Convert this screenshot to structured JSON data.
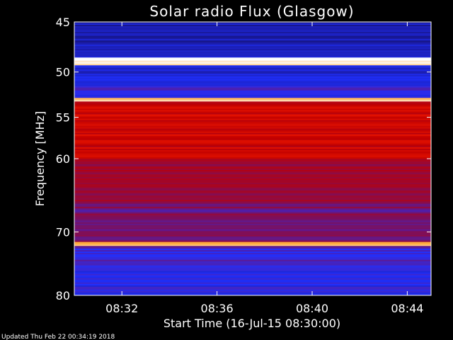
{
  "chart_data": {
    "type": "heatmap",
    "title": "Solar radio Flux (Glasgow)",
    "xlabel": "Start Time (16-Jul-15 08:30:00)",
    "ylabel": "Frequency [MHz]",
    "ylim": [
      45,
      80
    ],
    "xlim_minutes": [
      0,
      15
    ],
    "y_ticks": [
      "45",
      "50",
      "55",
      "60",
      "70",
      "80"
    ],
    "y_tick_values": [
      45,
      50,
      55,
      60,
      70,
      80
    ],
    "x_ticks": [
      "08:32",
      "08:36",
      "08:40",
      "08:44"
    ],
    "x_tick_values": [
      2,
      6,
      10,
      14
    ],
    "colormap": [
      "#000000",
      "#1a1aa0",
      "#2030ff",
      "#7a1060",
      "#c00000",
      "#ff2000",
      "#ff9000",
      "#ffffff"
    ],
    "bands": [
      {
        "from_mhz": 45,
        "to_mhz": 48.5,
        "level": 0.18
      },
      {
        "from_mhz": 48.5,
        "to_mhz": 49.3,
        "level": 1.0
      },
      {
        "from_mhz": 49.3,
        "to_mhz": 51.5,
        "level": 0.22
      },
      {
        "from_mhz": 51.5,
        "to_mhz": 52.8,
        "level": 0.3
      },
      {
        "from_mhz": 52.8,
        "to_mhz": 53.2,
        "level": 0.92
      },
      {
        "from_mhz": 53.2,
        "to_mhz": 60,
        "level": 0.6
      },
      {
        "from_mhz": 60,
        "to_mhz": 66,
        "level": 0.5
      },
      {
        "from_mhz": 66,
        "to_mhz": 71.5,
        "level": 0.42
      },
      {
        "from_mhz": 71.5,
        "to_mhz": 72.1,
        "level": 0.95
      },
      {
        "from_mhz": 72.1,
        "to_mhz": 76,
        "level": 0.34
      },
      {
        "from_mhz": 76,
        "to_mhz": 80,
        "level": 0.28
      }
    ]
  },
  "footer": {
    "updated": "Updated Thu Feb 22 00:34:19 2018"
  }
}
